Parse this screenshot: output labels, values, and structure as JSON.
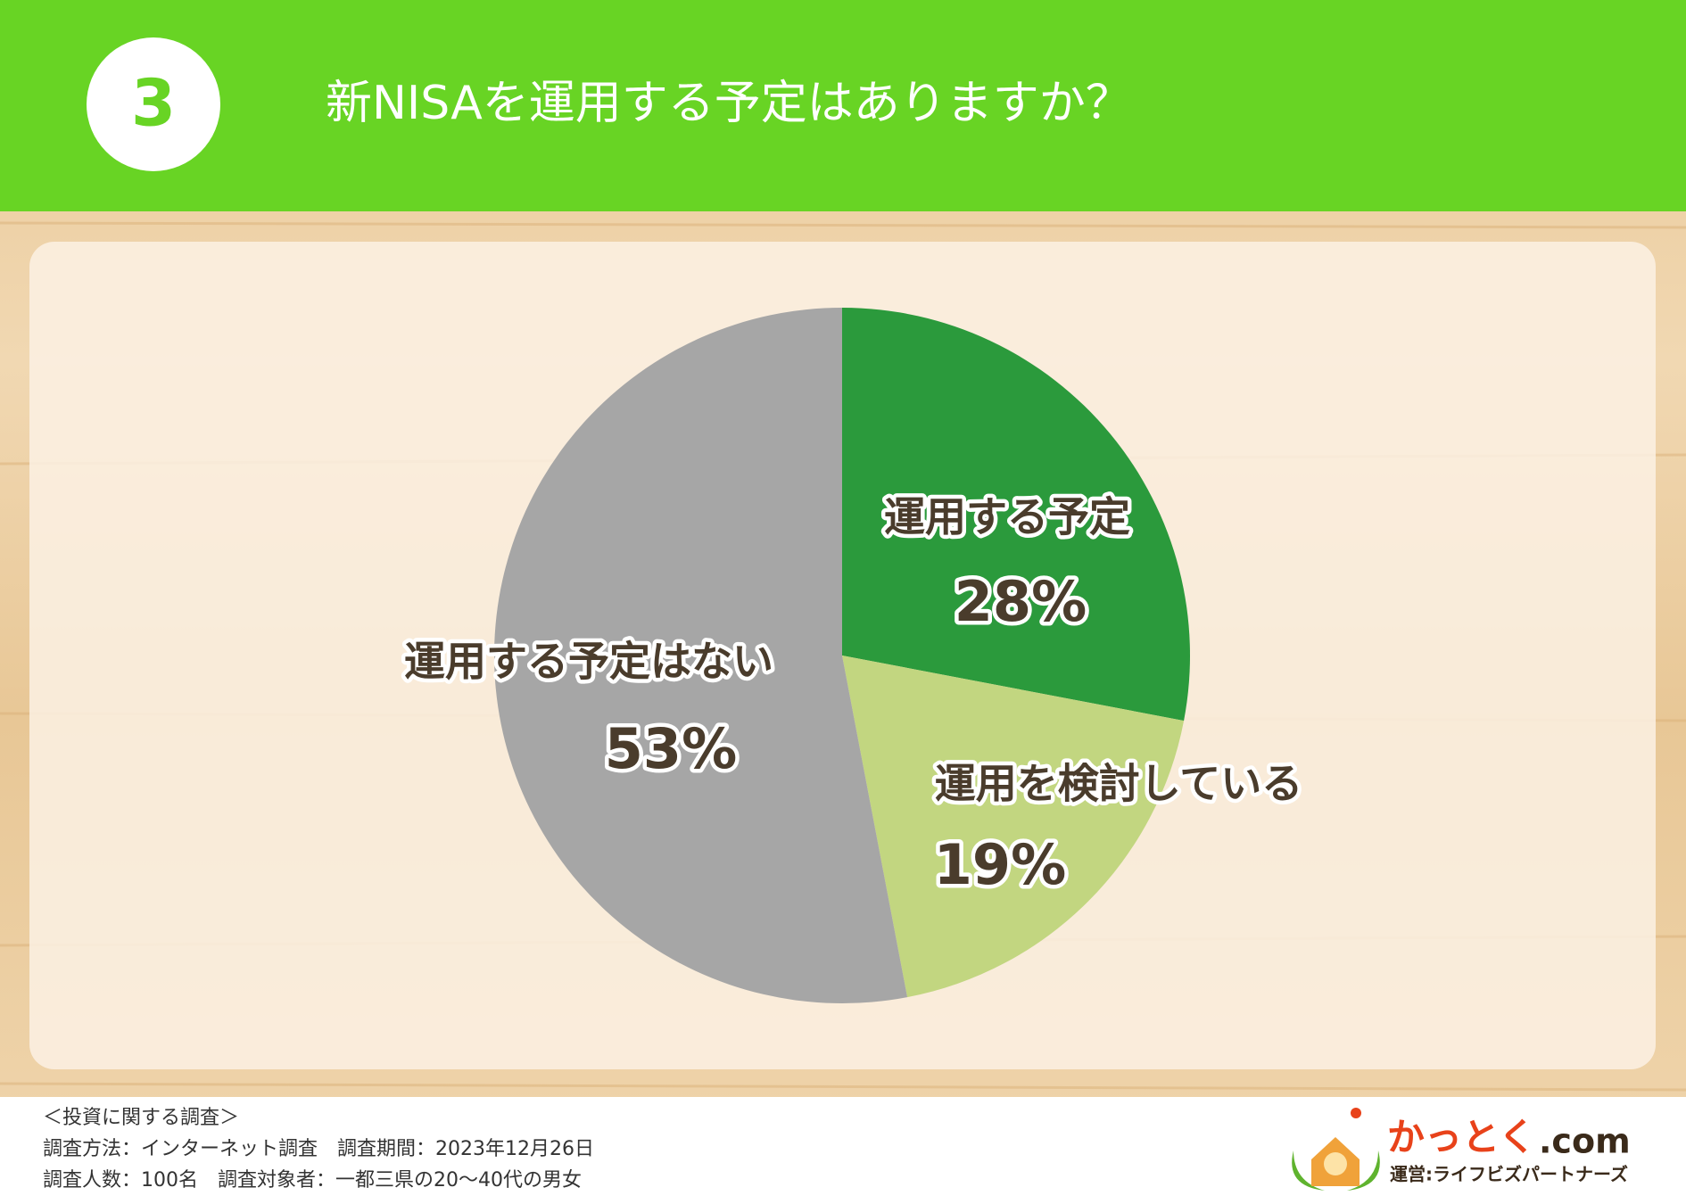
{
  "badge": "3",
  "chart_data": {
    "type": "pie",
    "title": "新NISAを運用する予定はありますか？",
    "categories": [
      "運用する予定",
      "運用を検討している",
      "運用する予定はない"
    ],
    "values": [
      28,
      19,
      53
    ],
    "value_labels": [
      "28%",
      "19%",
      "53%"
    ],
    "colors": [
      "#2b9a3c",
      "#c2d680",
      "#a6a6a6"
    ]
  },
  "notes": [
    "＜投資に関する調査＞",
    "調査方法：インターネット調査　調査期間：2023年12月26日",
    "調査人数：100名　調査対象者：一都三県の20～40代の男女"
  ],
  "logo": {
    "name": "かっとく",
    "suffix": ".com",
    "operator": "運営:ライフビズパートナーズ"
  }
}
